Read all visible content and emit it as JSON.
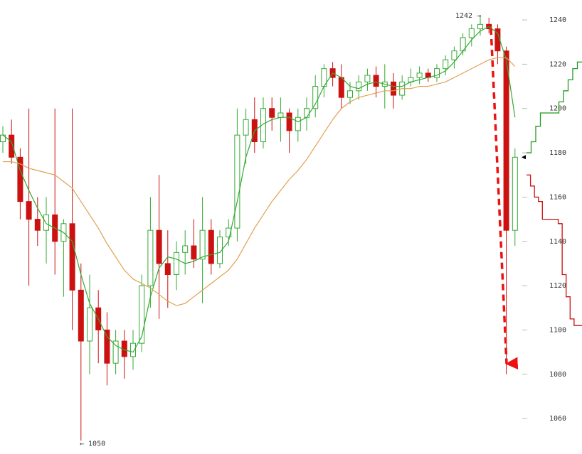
{
  "chart_data": {
    "type": "candlestick",
    "ylim": [
      1044,
      1249
    ],
    "yticks": [
      1060,
      1080,
      1100,
      1120,
      1140,
      1160,
      1180,
      1200,
      1220,
      1240
    ],
    "up_color": "#33aa33",
    "down_color": "#cc1111",
    "open": [
      1185,
      1188,
      1178,
      1158,
      1150,
      1145,
      1152,
      1140,
      1148,
      1118,
      1095,
      1110,
      1100,
      1085,
      1095,
      1088,
      1094,
      1120,
      1145,
      1130,
      1125,
      1135,
      1138,
      1132,
      1145,
      1130,
      1142,
      1146,
      1188,
      1195,
      1185,
      1200,
      1196,
      1198,
      1190,
      1196,
      1200,
      1210,
      1218,
      1214,
      1205,
      1208,
      1212,
      1215,
      1210,
      1212,
      1206,
      1212,
      1214,
      1216,
      1214,
      1218,
      1222,
      1226,
      1232,
      1236,
      1238,
      1236,
      1226,
      1145
    ],
    "high": [
      1192,
      1195,
      1182,
      1200,
      1160,
      1160,
      1200,
      1150,
      1200,
      1130,
      1125,
      1118,
      1108,
      1100,
      1100,
      1100,
      1125,
      1160,
      1170,
      1145,
      1140,
      1145,
      1150,
      1160,
      1150,
      1145,
      1150,
      1200,
      1200,
      1205,
      1205,
      1205,
      1205,
      1200,
      1200,
      1205,
      1215,
      1220,
      1221,
      1220,
      1212,
      1215,
      1218,
      1219,
      1220,
      1216,
      1215,
      1218,
      1219,
      1218,
      1220,
      1224,
      1228,
      1234,
      1238,
      1242,
      1241,
      1238,
      1228,
      1182
    ],
    "low": [
      1180,
      1175,
      1150,
      1120,
      1138,
      1130,
      1125,
      1115,
      1100,
      1050,
      1080,
      1085,
      1075,
      1080,
      1078,
      1082,
      1090,
      1110,
      1105,
      1110,
      1118,
      1125,
      1128,
      1112,
      1125,
      1128,
      1138,
      1140,
      1175,
      1180,
      1182,
      1190,
      1185,
      1180,
      1185,
      1190,
      1196,
      1205,
      1210,
      1200,
      1202,
      1204,
      1208,
      1205,
      1200,
      1200,
      1204,
      1210,
      1211,
      1212,
      1212,
      1215,
      1218,
      1224,
      1228,
      1233,
      1234,
      1220,
      1080,
      1138
    ],
    "close": [
      1188,
      1178,
      1158,
      1150,
      1145,
      1152,
      1140,
      1148,
      1118,
      1095,
      1110,
      1100,
      1085,
      1095,
      1088,
      1094,
      1120,
      1145,
      1130,
      1125,
      1135,
      1138,
      1132,
      1145,
      1130,
      1142,
      1146,
      1188,
      1195,
      1185,
      1200,
      1196,
      1198,
      1190,
      1196,
      1200,
      1210,
      1218,
      1214,
      1205,
      1208,
      1212,
      1215,
      1210,
      1212,
      1206,
      1212,
      1214,
      1216,
      1214,
      1218,
      1222,
      1226,
      1232,
      1236,
      1238,
      1236,
      1226,
      1145,
      1178
    ],
    "series": [
      {
        "color": "#33aa33",
        "values": [
          1188,
          1185,
          1172,
          1163,
          1155,
          1148,
          1146,
          1144,
          1140,
          1125,
          1112,
          1105,
          1097,
          1093,
          1091,
          1090,
          1097,
          1115,
          1128,
          1133,
          1132,
          1130,
          1131,
          1133,
          1134,
          1135,
          1140,
          1158,
          1178,
          1190,
          1193,
          1195,
          1196,
          1196,
          1194,
          1196,
          1202,
          1210,
          1216,
          1214,
          1210,
          1209,
          1211,
          1212,
          1211,
          1210,
          1210,
          1212,
          1213,
          1214,
          1215,
          1217,
          1221,
          1226,
          1231,
          1235,
          1237,
          1234,
          1222,
          1196
        ]
      },
      {
        "color": "#e0a050",
        "values": [
          1176,
          1176,
          1175,
          1173,
          1172,
          1171,
          1170,
          1167,
          1164,
          1158,
          1152,
          1146,
          1139,
          1133,
          1127,
          1123,
          1121,
          1119,
          1116,
          1113,
          1111,
          1112,
          1115,
          1118,
          1121,
          1124,
          1127,
          1132,
          1139,
          1146,
          1152,
          1158,
          1163,
          1168,
          1172,
          1177,
          1183,
          1189,
          1195,
          1200,
          1203,
          1205,
          1206,
          1207,
          1208,
          1208,
          1209,
          1209,
          1210,
          1210,
          1211,
          1212,
          1214,
          1216,
          1218,
          1220,
          1222,
          1223,
          1223,
          1219
        ]
      }
    ],
    "depth": [
      {
        "color": "#229922",
        "values": [
          1180,
          1185,
          1192,
          1198,
          1198,
          1198,
          1198,
          1203,
          1208,
          1213,
          1218,
          1221
        ]
      },
      {
        "color": "#cc1111",
        "values": [
          1170,
          1165,
          1160,
          1158,
          1150,
          1150,
          1150,
          1150,
          1148,
          1125,
          1115,
          1105,
          1102,
          1102
        ]
      }
    ],
    "annotations": [
      {
        "text": "1242 →",
        "value": 1242
      },
      {
        "text": "← 1050",
        "value": 1050
      }
    ]
  }
}
